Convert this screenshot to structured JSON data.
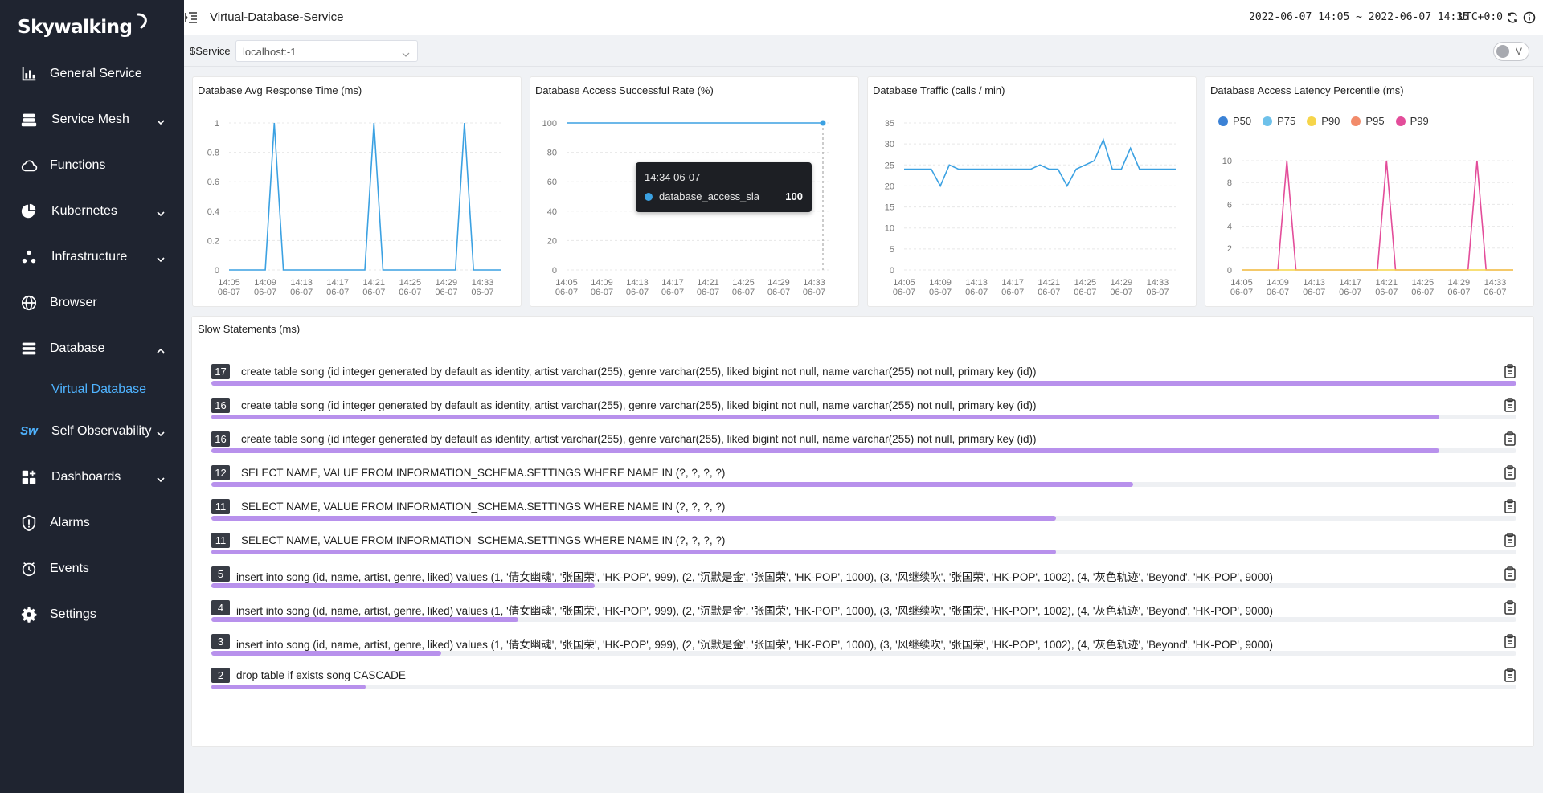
{
  "sidebar": {
    "logo": "Skywalking",
    "items": [
      {
        "label": "General Service",
        "icon": "bar-chart-icon",
        "chevron": false
      },
      {
        "label": "Service Mesh",
        "icon": "service-mesh-icon",
        "chevron": true
      },
      {
        "label": "Functions",
        "icon": "cloud-icon",
        "chevron": false
      },
      {
        "label": "Kubernetes",
        "icon": "pie-chart-icon",
        "chevron": true
      },
      {
        "label": "Infrastructure",
        "icon": "infrastructure-icon",
        "chevron": true
      },
      {
        "label": "Browser",
        "icon": "globe-icon",
        "chevron": false
      },
      {
        "label": "Database",
        "icon": "database-icon",
        "chevron": true,
        "expanded": true
      },
      {
        "label": "Self Observability",
        "icon": "sw-icon",
        "chevron": true
      },
      {
        "label": "Dashboards",
        "icon": "dashboard-icon",
        "chevron": true
      },
      {
        "label": "Alarms",
        "icon": "alarm-icon",
        "chevron": false
      },
      {
        "label": "Events",
        "icon": "events-icon",
        "chevron": false
      },
      {
        "label": "Settings",
        "icon": "gear-icon",
        "chevron": false
      }
    ],
    "sub_item": "Virtual Database",
    "sw_badge": "Sw"
  },
  "header": {
    "title": "Virtual-Database-Service",
    "time_range": "2022-06-07 14:05 ~ 2022-06-07 14:35",
    "timezone": "UTC+0:0"
  },
  "toolbar": {
    "service_label": "$Service",
    "service_value": "localhost:-1",
    "toggle_label": "V"
  },
  "x_ticks": [
    [
      "14:05",
      "06-07"
    ],
    [
      "14:09",
      "06-07"
    ],
    [
      "14:13",
      "06-07"
    ],
    [
      "14:17",
      "06-07"
    ],
    [
      "14:21",
      "06-07"
    ],
    [
      "14:25",
      "06-07"
    ],
    [
      "14:29",
      "06-07"
    ],
    [
      "14:33",
      "06-07"
    ]
  ],
  "chart_data": [
    {
      "type": "line",
      "title": "Database Avg Response Time (ms)",
      "x": [
        "14:05",
        "14:06",
        "14:07",
        "14:08",
        "14:09",
        "14:10",
        "14:11",
        "14:12",
        "14:13",
        "14:14",
        "14:15",
        "14:16",
        "14:17",
        "14:18",
        "14:19",
        "14:20",
        "14:21",
        "14:22",
        "14:23",
        "14:24",
        "14:25",
        "14:26",
        "14:27",
        "14:28",
        "14:29",
        "14:30",
        "14:31",
        "14:32",
        "14:33",
        "14:34",
        "14:35"
      ],
      "series": [
        {
          "values": [
            0,
            0,
            0,
            0,
            0,
            1,
            0,
            0,
            0,
            0,
            0,
            0,
            0,
            0,
            0,
            0,
            1,
            0,
            0,
            0,
            0,
            0,
            0,
            0,
            0,
            0,
            1,
            0,
            0,
            0,
            0
          ],
          "color": "#3ba1e2"
        }
      ],
      "yticks": [
        "1",
        "0.8",
        "0.6",
        "0.4",
        "0.2",
        "0"
      ],
      "ylim": [
        0,
        1
      ]
    },
    {
      "type": "line",
      "title": "Database Access Successful Rate (%)",
      "x": [
        "14:05",
        "14:06",
        "14:07",
        "14:08",
        "14:09",
        "14:10",
        "14:11",
        "14:12",
        "14:13",
        "14:14",
        "14:15",
        "14:16",
        "14:17",
        "14:18",
        "14:19",
        "14:20",
        "14:21",
        "14:22",
        "14:23",
        "14:24",
        "14:25",
        "14:26",
        "14:27",
        "14:28",
        "14:29",
        "14:30",
        "14:31",
        "14:32",
        "14:33",
        "14:34"
      ],
      "series": [
        {
          "name": "database_access_sla",
          "values": [
            100,
            100,
            100,
            100,
            100,
            100,
            100,
            100,
            100,
            100,
            100,
            100,
            100,
            100,
            100,
            100,
            100,
            100,
            100,
            100,
            100,
            100,
            100,
            100,
            100,
            100,
            100,
            100,
            100,
            100
          ],
          "color": "#3ba1e2"
        }
      ],
      "yticks": [
        "100",
        "80",
        "60",
        "40",
        "20",
        "0"
      ],
      "ylim": [
        0,
        100
      ],
      "tooltip": {
        "time": "14:34 06-07",
        "series": "database_access_sla",
        "value": "100"
      }
    },
    {
      "type": "line",
      "title": "Database Traffic (calls / min)",
      "x": [
        "14:05",
        "14:06",
        "14:07",
        "14:08",
        "14:09",
        "14:10",
        "14:11",
        "14:12",
        "14:13",
        "14:14",
        "14:15",
        "14:16",
        "14:17",
        "14:18",
        "14:19",
        "14:20",
        "14:21",
        "14:22",
        "14:23",
        "14:24",
        "14:25",
        "14:26",
        "14:27",
        "14:28",
        "14:29",
        "14:30",
        "14:31",
        "14:32",
        "14:33",
        "14:34",
        "14:35"
      ],
      "series": [
        {
          "values": [
            24,
            24,
            24,
            24,
            20,
            25,
            24,
            24,
            24,
            24,
            24,
            24,
            24,
            24,
            24,
            25,
            24,
            24,
            20,
            24,
            25,
            26,
            31,
            24,
            24,
            29,
            24,
            24,
            24,
            24,
            24
          ],
          "color": "#3ba1e2"
        }
      ],
      "yticks": [
        "35",
        "30",
        "25",
        "20",
        "15",
        "10",
        "5",
        "0"
      ],
      "ylim": [
        0,
        35
      ]
    },
    {
      "type": "line",
      "title": "Database Access Latency Percentile (ms)",
      "legend": [
        {
          "name": "P50",
          "color": "#3b82d6"
        },
        {
          "name": "P75",
          "color": "#6ec1ea"
        },
        {
          "name": "P90",
          "color": "#f6d54a"
        },
        {
          "name": "P95",
          "color": "#f28b6a"
        },
        {
          "name": "P99",
          "color": "#e34d9a"
        }
      ],
      "x": [
        "14:05",
        "14:06",
        "14:07",
        "14:08",
        "14:09",
        "14:10",
        "14:11",
        "14:12",
        "14:13",
        "14:14",
        "14:15",
        "14:16",
        "14:17",
        "14:18",
        "14:19",
        "14:20",
        "14:21",
        "14:22",
        "14:23",
        "14:24",
        "14:25",
        "14:26",
        "14:27",
        "14:28",
        "14:29",
        "14:30",
        "14:31",
        "14:32",
        "14:33",
        "14:34",
        "14:35"
      ],
      "series": [
        {
          "name": "P99",
          "values": [
            0,
            0,
            0,
            0,
            0,
            10,
            0,
            0,
            0,
            0,
            0,
            0,
            0,
            0,
            0,
            0,
            10,
            0,
            0,
            0,
            0,
            0,
            0,
            0,
            0,
            0,
            10,
            0,
            0,
            0,
            0
          ],
          "color": "#e34d9a"
        },
        {
          "name": "P90",
          "values": [
            0,
            0,
            0,
            0,
            0,
            0,
            0,
            0,
            0,
            0,
            0,
            0,
            0,
            0,
            0,
            0,
            0,
            0,
            0,
            0,
            0,
            0,
            0,
            0,
            0,
            0,
            0,
            0,
            0,
            0,
            0
          ],
          "color": "#f6d54a"
        }
      ],
      "yticks": [
        "10",
        "8",
        "6",
        "4",
        "2",
        "0"
      ],
      "ylim": [
        0,
        10
      ]
    }
  ],
  "slow_statements": {
    "title": "Slow Statements (ms)",
    "items": [
      {
        "value": "17",
        "fraction": 1.0,
        "statement": "create table song (id integer generated by default as identity, artist varchar(255), genre varchar(255), liked bigint not null, name varchar(255) not null, primary key (id))"
      },
      {
        "value": "16",
        "fraction": 0.941,
        "statement": "create table song (id integer generated by default as identity, artist varchar(255), genre varchar(255), liked bigint not null, name varchar(255) not null, primary key (id))"
      },
      {
        "value": "16",
        "fraction": 0.941,
        "statement": "create table song (id integer generated by default as identity, artist varchar(255), genre varchar(255), liked bigint not null, name varchar(255) not null, primary key (id))"
      },
      {
        "value": "12",
        "fraction": 0.706,
        "statement": "SELECT NAME, VALUE FROM INFORMATION_SCHEMA.SETTINGS WHERE NAME IN (?, ?, ?, ?)"
      },
      {
        "value": "11",
        "fraction": 0.647,
        "statement": "SELECT NAME, VALUE FROM INFORMATION_SCHEMA.SETTINGS WHERE NAME IN (?, ?, ?, ?)"
      },
      {
        "value": "11",
        "fraction": 0.647,
        "statement": "SELECT NAME, VALUE FROM INFORMATION_SCHEMA.SETTINGS WHERE NAME IN (?, ?, ?, ?)"
      },
      {
        "value": "5",
        "fraction": 0.294,
        "statement": "insert into song (id, name, artist, genre, liked) values (1, '倩女幽魂', '张国荣', 'HK-POP', 999), (2, '沉默是金', '张国荣', 'HK-POP', 1000), (3, '风继续吹', '张国荣', 'HK-POP', 1002), (4, '灰色轨迹', 'Beyond', 'HK-POP', 9000)"
      },
      {
        "value": "4",
        "fraction": 0.235,
        "statement": "insert into song (id, name, artist, genre, liked) values (1, '倩女幽魂', '张国荣', 'HK-POP', 999), (2, '沉默是金', '张国荣', 'HK-POP', 1000), (3, '风继续吹', '张国荣', 'HK-POP', 1002), (4, '灰色轨迹', 'Beyond', 'HK-POP', 9000)"
      },
      {
        "value": "3",
        "fraction": 0.176,
        "statement": "insert into song (id, name, artist, genre, liked) values (1, '倩女幽魂', '张国荣', 'HK-POP', 999), (2, '沉默是金', '张国荣', 'HK-POP', 1000), (3, '风继续吹', '张国荣', 'HK-POP', 1002), (4, '灰色轨迹', 'Beyond', 'HK-POP', 9000)"
      },
      {
        "value": "2",
        "fraction": 0.118,
        "statement": "drop table if exists song CASCADE"
      }
    ]
  }
}
